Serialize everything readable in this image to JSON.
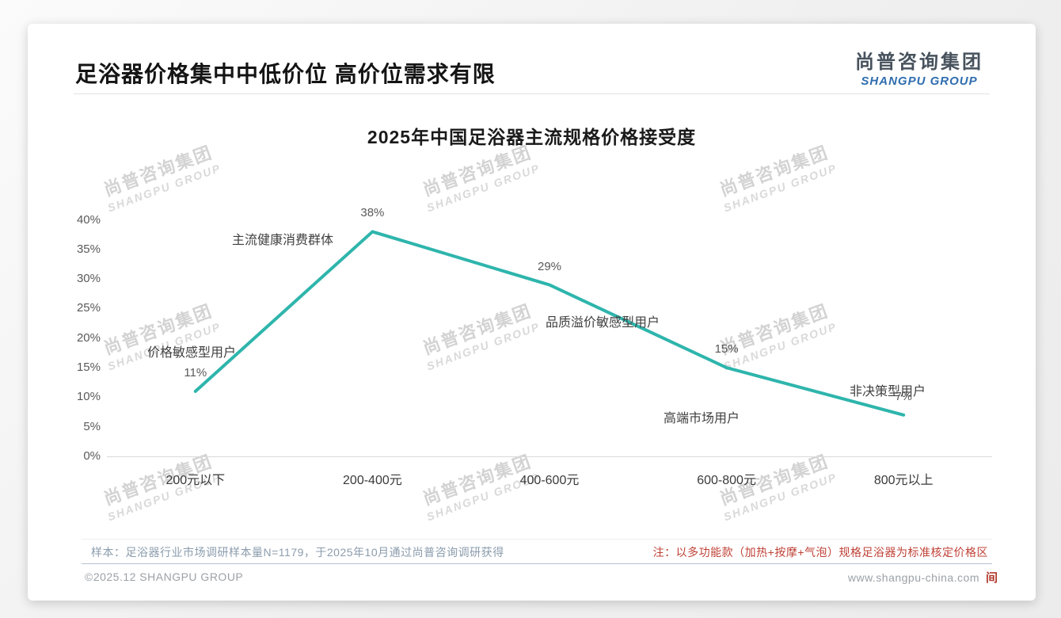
{
  "header": {
    "title": "足浴器价格集中中低价位 高价位需求有限",
    "logo_cn": "尚普咨询集团",
    "logo_en": "SHANGPU GROUP"
  },
  "watermark": {
    "cn": "尚普咨询集团",
    "en": "SHANGPU GROUP"
  },
  "chart_data": {
    "type": "line",
    "title": "2025年中国足浴器主流规格价格接受度",
    "categories": [
      "200元以下",
      "200-400元",
      "400-600元",
      "600-800元",
      "800元以上"
    ],
    "values": [
      11,
      38,
      29,
      15,
      7
    ],
    "value_labels": [
      "11%",
      "38%",
      "29%",
      "15%",
      "7%"
    ],
    "annotations": [
      "价格敏感型用户",
      "主流健康消费群体",
      "品质溢价敏感型用户",
      "高端市场用户",
      "非决策型用户"
    ],
    "xlabel": "",
    "ylabel": "",
    "ylim": [
      0,
      40
    ],
    "ytick_step": 5,
    "ytick_labels": [
      "0%",
      "5%",
      "10%",
      "15%",
      "20%",
      "25%",
      "30%",
      "35%",
      "40%"
    ],
    "line_color": "#2eb5ac",
    "grid": false,
    "legend": false
  },
  "footnotes": {
    "sample": "样本：足浴器行业市场调研样本量N=1179，于2025年10月通过尚普咨询调研获得",
    "note": "注：以多功能款（加热+按摩+气泡）规格足浴器为标准核定价格区"
  },
  "footer": {
    "copyright": "©2025.12 SHANGPU GROUP",
    "website": "www.shangpu-china.com",
    "seal": "间"
  }
}
